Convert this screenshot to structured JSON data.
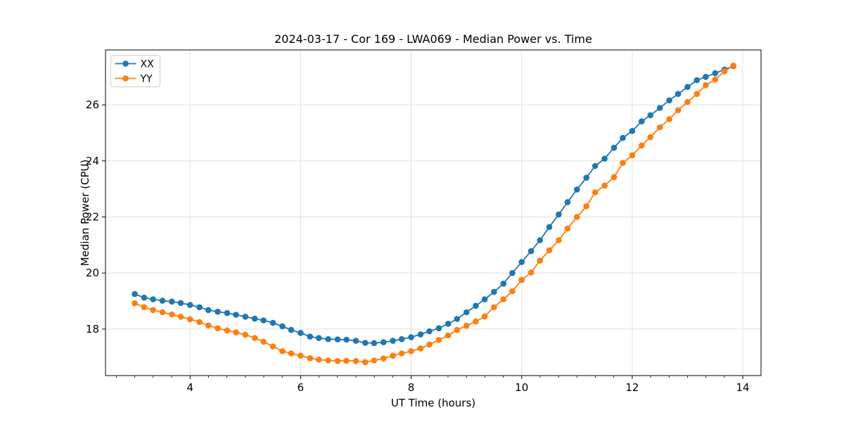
{
  "window": {
    "background": "#ffffff"
  },
  "chart_data": {
    "type": "line",
    "title": "2024-03-17 - Cor 169 - LWA069 - Median Power vs. Time",
    "xlabel": "UT Time (hours)",
    "ylabel": "Median Power (CPU)",
    "xlim": [
      2.47,
      14.33
    ],
    "ylim": [
      16.34,
      27.96
    ],
    "xticks": [
      4,
      6,
      8,
      10,
      12,
      14
    ],
    "yticks": [
      18,
      20,
      22,
      24,
      26
    ],
    "x_minor_step": 0.3333333,
    "grid": true,
    "legend_position": "upper left",
    "marker": "circle",
    "x": [
      3,
      3.17,
      3.33,
      3.5,
      3.67,
      3.83,
      4,
      4.17,
      4.33,
      4.5,
      4.67,
      4.83,
      5,
      5.17,
      5.33,
      5.5,
      5.67,
      5.83,
      6,
      6.17,
      6.33,
      6.5,
      6.67,
      6.83,
      7,
      7.17,
      7.33,
      7.5,
      7.67,
      7.83,
      8,
      8.17,
      8.33,
      8.5,
      8.67,
      8.83,
      9,
      9.17,
      9.33,
      9.5,
      9.67,
      9.83,
      10,
      10.17,
      10.33,
      10.5,
      10.67,
      10.83,
      11,
      11.17,
      11.33,
      11.5,
      11.67,
      11.83,
      12,
      12.17,
      12.33,
      12.5,
      12.67,
      12.83,
      13,
      13.17,
      13.33,
      13.5,
      13.67,
      13.83
    ],
    "series": [
      {
        "name": "XX",
        "color": "#1f77b4",
        "values": [
          19.25,
          19.12,
          19.06,
          19.01,
          18.98,
          18.93,
          18.86,
          18.78,
          18.68,
          18.62,
          18.57,
          18.51,
          18.44,
          18.37,
          18.31,
          18.22,
          18.1,
          17.97,
          17.86,
          17.73,
          17.68,
          17.64,
          17.63,
          17.62,
          17.58,
          17.51,
          17.5,
          17.53,
          17.58,
          17.64,
          17.71,
          17.81,
          17.92,
          18.03,
          18.19,
          18.36,
          18.6,
          18.83,
          19.06,
          19.33,
          19.62,
          20.0,
          20.39,
          20.78,
          21.17,
          21.64,
          22.09,
          22.53,
          22.98,
          23.4,
          23.82,
          24.08,
          24.47,
          24.82,
          25.07,
          25.41,
          25.63,
          25.89,
          26.16,
          26.39,
          26.64,
          26.88,
          27.0,
          27.13,
          27.26,
          27.38
        ]
      },
      {
        "name": "YY",
        "color": "#ff7f0e",
        "values": [
          18.92,
          18.78,
          18.68,
          18.6,
          18.52,
          18.44,
          18.35,
          18.25,
          18.13,
          18.03,
          17.95,
          17.88,
          17.8,
          17.68,
          17.55,
          17.38,
          17.21,
          17.13,
          17.05,
          16.96,
          16.91,
          16.88,
          16.86,
          16.87,
          16.86,
          16.82,
          16.88,
          16.95,
          17.05,
          17.13,
          17.21,
          17.31,
          17.45,
          17.61,
          17.77,
          17.97,
          18.12,
          18.27,
          18.45,
          18.78,
          19.06,
          19.35,
          19.75,
          20.02,
          20.44,
          20.81,
          21.17,
          21.59,
          22.0,
          22.38,
          22.88,
          23.12,
          23.42,
          23.93,
          24.2,
          24.55,
          24.85,
          25.2,
          25.49,
          25.81,
          26.1,
          26.39,
          26.7,
          26.9,
          27.2,
          27.4
        ]
      }
    ]
  },
  "colors": {
    "grid": "#e0e0e0",
    "spine": "#000000",
    "tick": "#000000",
    "legend_border": "#cccccc",
    "legend_fill": "#ffffff"
  }
}
